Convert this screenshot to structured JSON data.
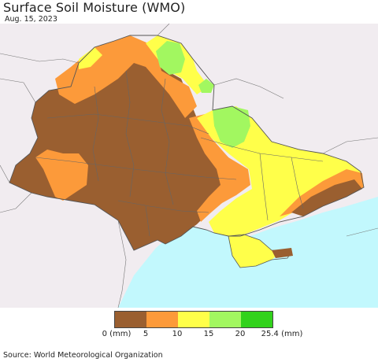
{
  "header": {
    "title": "Surface Soil Moisture (WMO)",
    "date": "Aug. 15, 2023"
  },
  "legend": {
    "colors": [
      "#9a5f30",
      "#fc9a3a",
      "#ffff4a",
      "#a2f760",
      "#32d21c"
    ],
    "ticks": [
      "0 (mm)",
      "5",
      "10",
      "15",
      "20",
      "25.4 (mm)"
    ]
  },
  "colors": {
    "sea": "#c2f8fd",
    "outside_land": "#f1ecf0",
    "borders": "#666666"
  },
  "footer": {
    "source": "Source: World Meteorological Organization"
  }
}
